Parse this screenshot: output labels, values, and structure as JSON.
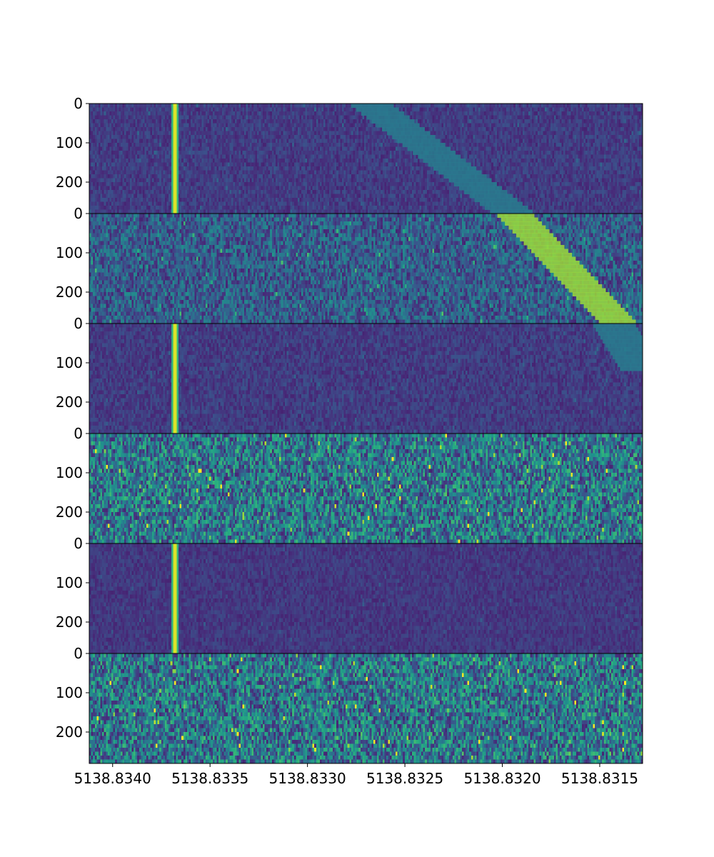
{
  "chart_data": {
    "type": "heatmap",
    "colormap": "viridis",
    "x": {
      "range": [
        5138.83412,
        5138.83128
      ],
      "ticks": [
        5138.834,
        5138.8335,
        5138.833,
        5138.8325,
        5138.832,
        5138.8315
      ],
      "tick_labels": [
        "5138.8340",
        "5138.8335",
        "5138.8330",
        "5138.8325",
        "5138.8320",
        "5138.8315"
      ]
    },
    "y": {
      "range": [
        0,
        280
      ],
      "ticks": [
        0,
        100,
        200
      ],
      "tick_labels": [
        "0",
        "100",
        "200"
      ]
    },
    "panels": [
      {
        "noise": 0.12,
        "noise_level": 0.12,
        "lines": [
          {
            "type": "vertical",
            "x": 5138.83368,
            "width": 2.5e-06,
            "intensity": 0.95
          }
        ],
        "bands": [
          {
            "x_start": 5138.83268,
            "x_end": 5138.83194,
            "width": 0.00022,
            "intensity": 0.42,
            "step_rows": 10,
            "y_start": 0,
            "y_end": 280
          }
        ]
      },
      {
        "noise": 0.3,
        "noise_level": 0.3,
        "lines": [],
        "bands": [
          {
            "x_start": 5138.83194,
            "x_end": 5138.8314,
            "width": 0.00019,
            "intensity": 0.85,
            "step_rows": 10,
            "y_start": 0,
            "y_end": 280
          }
        ]
      },
      {
        "noise": 0.12,
        "noise_level": 0.12,
        "lines": [
          {
            "type": "vertical",
            "x": 5138.83368,
            "width": 2.5e-06,
            "intensity": 0.95
          }
        ],
        "bands": [
          {
            "x_start": 5138.83143,
            "x_end": 5138.83128,
            "width": 0.00022,
            "intensity": 0.42,
            "step_rows": 10,
            "y_start": 0,
            "y_end": 120
          }
        ]
      },
      {
        "noise": 0.45,
        "noise_level": 0.45,
        "lines": [],
        "bands": []
      },
      {
        "noise": 0.1,
        "noise_level": 0.1,
        "lines": [
          {
            "type": "vertical",
            "x": 5138.83368,
            "width": 2.5e-06,
            "intensity": 0.95
          }
        ],
        "bands": []
      },
      {
        "noise": 0.45,
        "noise_level": 0.45,
        "lines": [],
        "bands": []
      }
    ]
  }
}
